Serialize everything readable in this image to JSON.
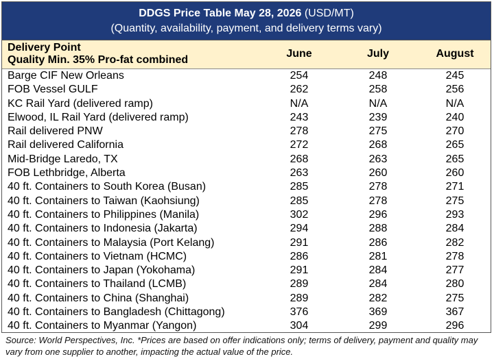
{
  "header": {
    "title": "DDGS Price Table May 28, 2026",
    "title_unit": "(USD/MT)",
    "subtitle": "(Quantity, availability, payment, and delivery terms vary)"
  },
  "table": {
    "first_header": "Delivery Point",
    "first_header_note": "Quality Min. 35% Pro-fat combined",
    "columns": [
      "June",
      "July",
      "August"
    ],
    "rows": [
      [
        "Barge CIF New Orleans",
        254,
        248,
        245
      ],
      [
        "FOB Vessel GULF",
        262,
        258,
        256
      ],
      [
        "KC Rail Yard (delivered ramp)",
        "N/A",
        "N/A",
        "N/A"
      ],
      [
        "Elwood, IL Rail Yard (delivered ramp)",
        243,
        239,
        240
      ],
      [
        "Rail delivered PNW",
        278,
        275,
        270
      ],
      [
        "Rail delivered California",
        272,
        268,
        265
      ],
      [
        "Mid-Bridge Laredo, TX",
        268,
        263,
        265
      ],
      [
        "FOB Lethbridge, Alberta",
        263,
        260,
        260
      ],
      [
        "40 ft. Containers to South Korea (Busan)",
        285,
        278,
        271
      ],
      [
        "40 ft. Containers to Taiwan (Kaohsiung)",
        285,
        278,
        275
      ],
      [
        "40 ft. Containers to Philippines (Manila)",
        302,
        296,
        293
      ],
      [
        "40 ft. Containers to Indonesia (Jakarta)",
        294,
        288,
        284
      ],
      [
        "40 ft. Containers to Malaysia (Port Kelang)",
        291,
        286,
        282
      ],
      [
        "40 ft. Containers to Vietnam (HCMC)",
        286,
        281,
        278
      ],
      [
        "40 ft. Containers to Japan (Yokohama)",
        291,
        284,
        277
      ],
      [
        "40 ft. Containers to Thailand (LCMB)",
        289,
        284,
        280
      ],
      [
        "40 ft. Containers to China (Shanghai)",
        289,
        282,
        275
      ],
      [
        "40 ft. Containers to Bangladesh (Chittagong)",
        376,
        369,
        367
      ],
      [
        "40 ft. Containers to Myanmar (Yangon)",
        304,
        299,
        296
      ]
    ]
  },
  "footer": {
    "source": "Source: World Perspectives, Inc. *Prices are based on offer indications only; terms of delivery, payment and quality may vary from one supplier to another, impacting the actual value of the price."
  }
}
